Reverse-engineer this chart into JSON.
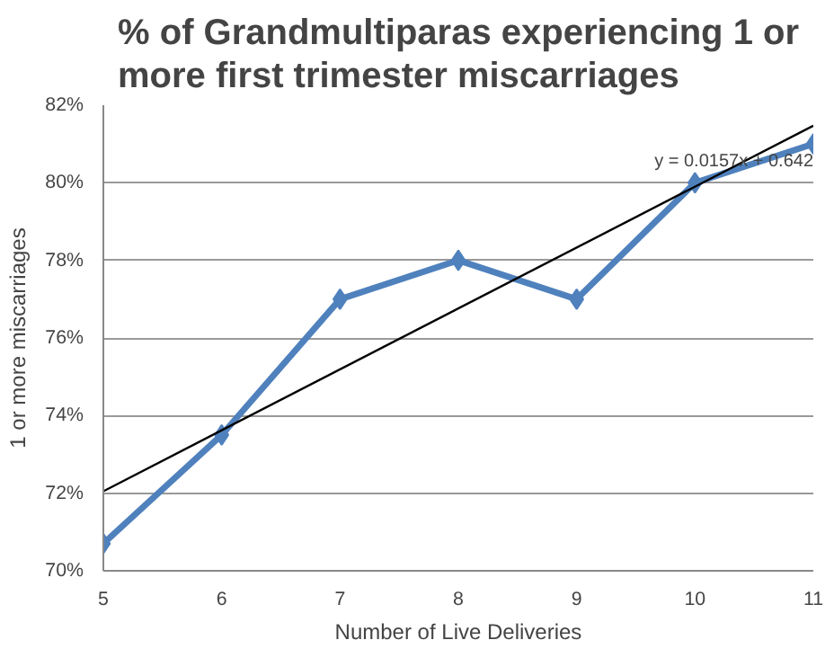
{
  "chart_data": {
    "type": "line",
    "title": "% of Grandmultiparas experiencing 1 or more first trimester miscarriages",
    "xlabel": "Number of Live Deliveries",
    "ylabel": "1 or more miscarriages",
    "x": [
      5,
      6,
      7,
      8,
      9,
      10,
      11
    ],
    "series": [
      {
        "color": "#4f81bd",
        "values": [
          70.7,
          73.5,
          77,
          78,
          77,
          80,
          81
        ],
        "marker": "diamond"
      },
      {
        "color": "#000000",
        "x": [
          5,
          11
        ],
        "values": [
          72.05,
          81.47
        ],
        "marker": "none"
      }
    ],
    "xlim": [
      5,
      11
    ],
    "xticks": [
      5,
      6,
      7,
      8,
      9,
      10,
      11
    ],
    "ylim": [
      70,
      82
    ],
    "yticks": [
      {
        "value": 70,
        "label": "70%"
      },
      {
        "value": 72,
        "label": "72%"
      },
      {
        "value": 74,
        "label": "74%"
      },
      {
        "value": 76,
        "label": "76%"
      },
      {
        "value": 78,
        "label": "78%"
      },
      {
        "value": 80,
        "label": "80%"
      },
      {
        "value": 82,
        "label": "82%"
      }
    ],
    "grid": "y",
    "annotations": [
      "y = 0.0157x + 0.642"
    ]
  }
}
